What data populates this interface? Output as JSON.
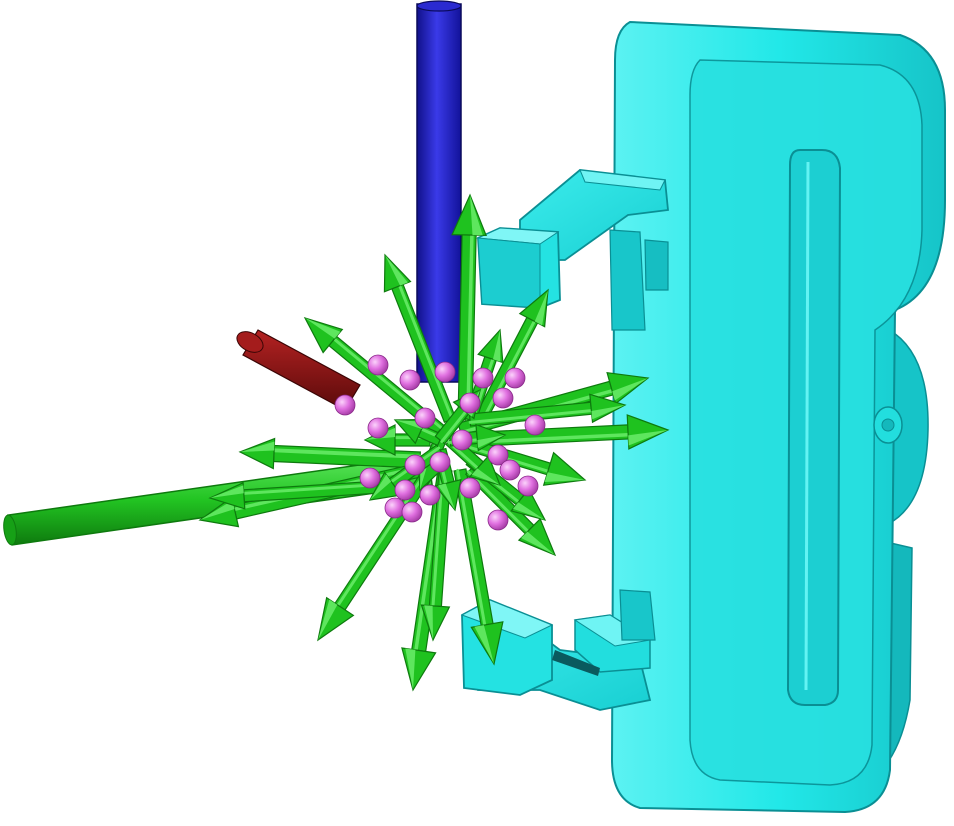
{
  "scene": {
    "background": "#ffffff",
    "colors": {
      "part": "#22e8e8",
      "part_light": "#7ff6f6",
      "part_dark": "#12b4b8",
      "part_edge": "#0a8f94",
      "axis_z": "#1a1ab4",
      "axis_z_light": "#3a3ae8",
      "axis_x": "#7a0f0f",
      "axis_x_light": "#b42222",
      "arrow": "#1fc21f",
      "arrow_light": "#5ee65e",
      "arrow_dark": "#0e7a0e",
      "contact_point": "#e070e0",
      "contact_point_light": "#f6b8f6"
    },
    "objects": [
      {
        "name": "cyan-bracket-part",
        "type": "mesh"
      },
      {
        "name": "z-axis",
        "type": "cylinder"
      },
      {
        "name": "x-axis",
        "type": "cylinder"
      },
      {
        "name": "force-arrows",
        "type": "arrow-set"
      },
      {
        "name": "contact-points",
        "type": "sphere-set"
      }
    ]
  }
}
